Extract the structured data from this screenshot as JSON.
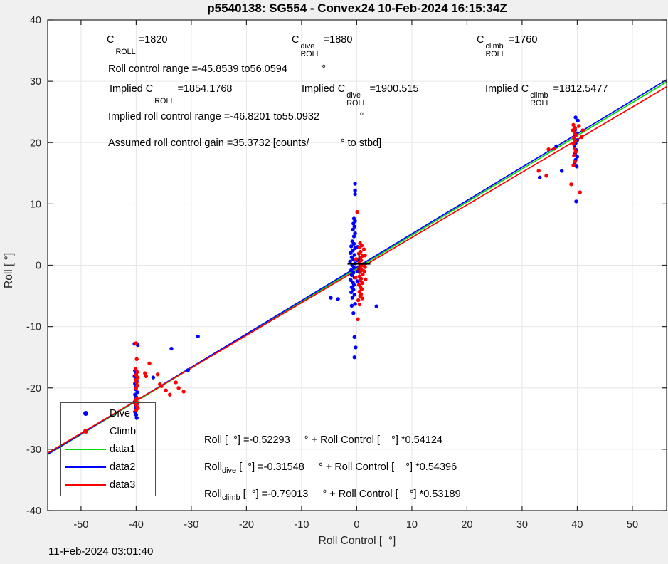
{
  "title": "p5540138: SG554 - Convex24 10-Feb-2024 16:15:34Z",
  "timestamp": "11-Feb-2024 03:01:40",
  "axes": {
    "xlabel": "Roll Control [  °]",
    "ylabel": "Roll [ °]"
  },
  "annotations": {
    "row1": [
      {
        "pre": "C",
        "sup": "",
        "sub": "ROLL",
        "post": "=1820"
      },
      {
        "pre": "C",
        "sup": "dive",
        "sub": "ROLL",
        "post": "=1880"
      },
      {
        "pre": "C",
        "sup": "climb",
        "sub": "ROLL",
        "post": "=1760"
      }
    ],
    "row2": "Roll control range =-45.8539 to56.0594            °",
    "row3": [
      {
        "pre": "Implied C",
        "sup": "",
        "sub": "ROLL",
        "post": "=1854.1768"
      },
      {
        "pre": "Implied C",
        "sup": "dive",
        "sub": "ROLL",
        "post": "=1900.515"
      },
      {
        "pre": "Implied C",
        "sup": "climb",
        "sub": "ROLL",
        "post": "=1812.5477"
      }
    ],
    "row4": "Implied roll control range =-46.8201 to55.0932              °",
    "row5": "Assumed roll control gain =35.3732 [counts/           ° to stbd]"
  },
  "equations": [
    {
      "pre": "Roll",
      "sub": "",
      "rest": " [  °] =-0.52293     ° + Roll Control [    °] *0.54124"
    },
    {
      "pre": "Roll",
      "sub": "dive",
      "rest": " [  °] =-0.31548     ° + Roll Control [    °] *0.54396"
    },
    {
      "pre": "Roll",
      "sub": "climb",
      "rest": " [  °] =-0.79013     ° + Roll Control [    °] *0.53189"
    }
  ],
  "legend": {
    "items": [
      {
        "label": "Dive",
        "type": "dot",
        "color": "#0000ff"
      },
      {
        "label": "Climb",
        "type": "dot",
        "color": "#ff0000"
      },
      {
        "label": "data1",
        "type": "line",
        "color": "#00dd00"
      },
      {
        "label": "data2",
        "type": "line",
        "color": "#0000ff"
      },
      {
        "label": "data3",
        "type": "line",
        "color": "#ff0000"
      }
    ]
  },
  "chart_data": {
    "type": "scatter",
    "title": "p5540138: SG554 - Convex24 10-Feb-2024 16:15:34Z",
    "xlabel": "Roll Control [ °]",
    "ylabel": "Roll [ °]",
    "xlim": [
      -56.05,
      56.2
    ],
    "ylim": [
      -40,
      40
    ],
    "x_ticks": [
      -50,
      -40,
      -30,
      -20,
      -10,
      0,
      10,
      20,
      30,
      40,
      50
    ],
    "y_ticks": [
      -40,
      -30,
      -20,
      -10,
      0,
      10,
      20,
      30,
      40
    ],
    "grid": true,
    "legend_position": "lower-left",
    "colors": {
      "background": "#f0f0f0",
      "plot_bg": "#ffffff",
      "grid": "#e6e6e6",
      "frame": "#262626"
    },
    "series": [
      {
        "name": "Dive",
        "color": "#0000ff",
        "marker": "dot",
        "points": [
          [
            -40.3,
            -12.8
          ],
          [
            -39.7,
            -13.0
          ],
          [
            -40.2,
            -17.2
          ],
          [
            -40.0,
            -17.7
          ],
          [
            -40.3,
            -18.1
          ],
          [
            -40.1,
            -18.5
          ],
          [
            -39.9,
            -18.9
          ],
          [
            -40.2,
            -19.3
          ],
          [
            -40.0,
            -19.8
          ],
          [
            -40.1,
            -20.2
          ],
          [
            -39.8,
            -20.7
          ],
          [
            -40.2,
            -21.1
          ],
          [
            -40.0,
            -21.5
          ],
          [
            -40.1,
            -21.9
          ],
          [
            -40.3,
            -22.3
          ],
          [
            -39.9,
            -22.7
          ],
          [
            -40.1,
            -23.1
          ],
          [
            -40.0,
            -23.5
          ],
          [
            -40.2,
            -23.9
          ],
          [
            -40.0,
            -24.4
          ],
          [
            -39.9,
            -24.9
          ],
          [
            -36.9,
            -18.3
          ],
          [
            -33.6,
            -13.6
          ],
          [
            -30.6,
            -17.1
          ],
          [
            -28.8,
            -11.6
          ],
          [
            -0.3,
            13.3
          ],
          [
            -0.3,
            12.2
          ],
          [
            -0.3,
            11.6
          ],
          [
            -0.5,
            7.6
          ],
          [
            -0.3,
            7.2
          ],
          [
            -0.6,
            6.8
          ],
          [
            -0.4,
            6.3
          ],
          [
            -0.7,
            5.8
          ],
          [
            -0.3,
            5.2
          ],
          [
            -0.5,
            4.7
          ],
          [
            -0.8,
            3.9
          ],
          [
            -0.5,
            3.5
          ],
          [
            -1.0,
            3.1
          ],
          [
            -0.3,
            2.8
          ],
          [
            0.2,
            3.0
          ],
          [
            -0.7,
            2.4
          ],
          [
            -1.1,
            2.0
          ],
          [
            -0.4,
            1.7
          ],
          [
            -0.9,
            1.3
          ],
          [
            -0.6,
            0.9
          ],
          [
            -1.2,
            0.6
          ],
          [
            -0.3,
            0.3
          ],
          [
            0.1,
            0.8
          ],
          [
            -0.8,
            0.0
          ],
          [
            -0.5,
            -0.4
          ],
          [
            -1.0,
            -0.8
          ],
          [
            0.2,
            -1.0
          ],
          [
            -0.6,
            -1.2
          ],
          [
            -0.9,
            -1.6
          ],
          [
            -0.4,
            -2.0
          ],
          [
            -1.1,
            -2.4
          ],
          [
            -0.7,
            -2.8
          ],
          [
            0.1,
            -2.6
          ],
          [
            -0.5,
            -3.2
          ],
          [
            -0.9,
            -3.6
          ],
          [
            -0.6,
            -4.0
          ],
          [
            -1.0,
            -4.4
          ],
          [
            -0.4,
            -4.8
          ],
          [
            -0.8,
            -5.3
          ],
          [
            -4.7,
            -5.3
          ],
          [
            -3.4,
            -5.5
          ],
          [
            -0.9,
            -6.6
          ],
          [
            -0.3,
            -6.3
          ],
          [
            3.6,
            -6.7
          ],
          [
            -0.6,
            -7.8
          ],
          [
            -0.4,
            -11.7
          ],
          [
            -0.2,
            -13.4
          ],
          [
            -0.4,
            -15.0
          ],
          [
            39.7,
            24.1
          ],
          [
            40.1,
            23.6
          ],
          [
            39.6,
            22.1
          ],
          [
            39.9,
            21.5
          ],
          [
            39.5,
            21.0
          ],
          [
            40.0,
            20.4
          ],
          [
            39.7,
            19.9
          ],
          [
            39.5,
            19.3
          ],
          [
            39.8,
            18.8
          ],
          [
            39.6,
            18.2
          ],
          [
            40.0,
            17.7
          ],
          [
            39.7,
            17.2
          ],
          [
            39.5,
            16.6
          ],
          [
            39.9,
            16.1
          ],
          [
            36.2,
            19.4
          ],
          [
            37.2,
            15.4
          ],
          [
            33.2,
            14.3
          ],
          [
            39.8,
            10.4
          ]
        ]
      },
      {
        "name": "Climb",
        "color": "#ff0000",
        "marker": "dot",
        "points": [
          [
            -40.0,
            -12.7
          ],
          [
            -39.9,
            -15.3
          ],
          [
            -40.1,
            -16.9
          ],
          [
            -39.8,
            -17.4
          ],
          [
            -40.0,
            -17.9
          ],
          [
            -39.7,
            -18.3
          ],
          [
            -40.1,
            -18.7
          ],
          [
            -39.9,
            -19.1
          ],
          [
            -39.8,
            -19.6
          ],
          [
            -40.0,
            -20.0
          ],
          [
            -39.9,
            -21.7
          ],
          [
            -40.1,
            -22.1
          ],
          [
            -39.8,
            -22.4
          ],
          [
            -40.0,
            -22.7
          ],
          [
            -39.9,
            -23.0
          ],
          [
            -39.7,
            -23.3
          ],
          [
            -40.0,
            -23.6
          ],
          [
            -38.4,
            -17.6
          ],
          [
            -38.2,
            -18.1
          ],
          [
            -37.6,
            -16.0
          ],
          [
            -36.1,
            -17.8
          ],
          [
            -35.4,
            -19.7
          ],
          [
            -34.6,
            -20.4
          ],
          [
            -33.9,
            -21.1
          ],
          [
            -35.7,
            -19.4
          ],
          [
            -32.8,
            -19.1
          ],
          [
            -32.3,
            -20.0
          ],
          [
            -31.4,
            -20.6
          ],
          [
            0.1,
            8.7
          ],
          [
            0.6,
            3.6
          ],
          [
            0.9,
            3.2
          ],
          [
            0.5,
            2.9
          ],
          [
            1.3,
            2.6
          ],
          [
            0.7,
            2.2
          ],
          [
            0.4,
            1.9
          ],
          [
            1.0,
            1.5
          ],
          [
            1.5,
            1.6
          ],
          [
            0.6,
            1.2
          ],
          [
            0.8,
            0.8
          ],
          [
            0.5,
            0.5
          ],
          [
            1.2,
            0.2
          ],
          [
            0.7,
            -0.1
          ],
          [
            1.5,
            -0.3
          ],
          [
            0.4,
            -0.5
          ],
          [
            0.9,
            -0.8
          ],
          [
            1.4,
            -1.0
          ],
          [
            0.6,
            -1.1
          ],
          [
            1.1,
            -1.5
          ],
          [
            0.5,
            -1.8
          ],
          [
            0.8,
            -2.2
          ],
          [
            1.6,
            -2.3
          ],
          [
            0.6,
            -2.5
          ],
          [
            1.0,
            -2.9
          ],
          [
            0.4,
            -3.2
          ],
          [
            0.7,
            -3.6
          ],
          [
            0.9,
            -3.9
          ],
          [
            0.5,
            -4.3
          ],
          [
            0.8,
            -4.7
          ],
          [
            0.6,
            -5.0
          ],
          [
            1.0,
            -5.4
          ],
          [
            0.3,
            -5.7
          ],
          [
            -0.2,
            -2.0
          ],
          [
            -0.1,
            1.0
          ],
          [
            0.5,
            -6.4
          ],
          [
            0.2,
            -8.8
          ],
          [
            39.3,
            22.9
          ],
          [
            40.3,
            22.7
          ],
          [
            39.6,
            22.4
          ],
          [
            41.0,
            22.0
          ],
          [
            39.2,
            22.0
          ],
          [
            39.5,
            21.6
          ],
          [
            40.8,
            20.9
          ],
          [
            39.8,
            21.2
          ],
          [
            39.4,
            20.8
          ],
          [
            39.6,
            20.3
          ],
          [
            39.3,
            19.8
          ],
          [
            39.5,
            19.0
          ],
          [
            39.7,
            18.5
          ],
          [
            39.4,
            17.9
          ],
          [
            39.6,
            16.9
          ],
          [
            39.3,
            16.3
          ],
          [
            34.8,
            18.9
          ],
          [
            35.8,
            19.0
          ],
          [
            33.0,
            15.4
          ],
          [
            34.4,
            14.6
          ],
          [
            38.9,
            13.2
          ],
          [
            40.5,
            11.9
          ]
        ]
      }
    ],
    "fit_lines": [
      {
        "name": "data1",
        "color": "#00dd00",
        "slope": 0.54124,
        "intercept": -0.52293
      },
      {
        "name": "data2",
        "color": "#0000ff",
        "slope": 0.54396,
        "intercept": -0.31548
      },
      {
        "name": "data3",
        "color": "#ff0000",
        "slope": 0.53189,
        "intercept": -0.79013
      }
    ],
    "mean_marker": {
      "x": 0.4,
      "y": 0.2,
      "color": "#000000"
    }
  }
}
